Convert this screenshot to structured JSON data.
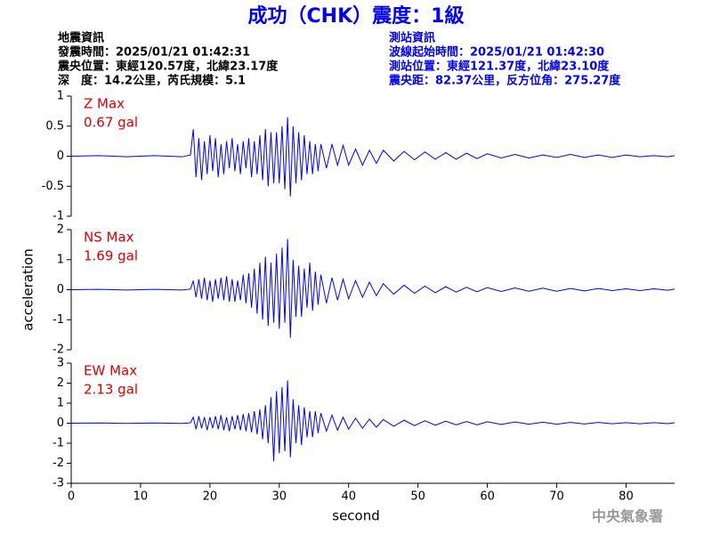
{
  "title": "成功（CHK）震度：1級",
  "event_info": [
    "地震資訊",
    "發震時間：2025/01/21 01:42:31",
    "震央位置：東經120.57度，北緯23.17度",
    "深　度：14.2公里，芮氏規模：5.1"
  ],
  "station_info": [
    "測站資訊",
    "波線起始時間：2025/01/21 01:42:30",
    "測站位置：東經121.37度，北緯23.10度",
    "震央距：82.37公里，反方位角：275.27度"
  ],
  "agency": "中央氣象署",
  "chart_data": [
    {
      "type": "line",
      "annotation": [
        "Z Max",
        "0.67 gal"
      ],
      "color": "#0000ff",
      "x": [
        0,
        4,
        8,
        12,
        16,
        17.2,
        17.6,
        18,
        18.4,
        18.8,
        19.2,
        19.6,
        20,
        20.4,
        20.8,
        21.2,
        21.6,
        22,
        22.4,
        22.8,
        23.2,
        23.6,
        24,
        24.4,
        24.8,
        25.2,
        25.6,
        26,
        26.4,
        26.8,
        27.2,
        27.6,
        28,
        28.4,
        28.8,
        29.2,
        29.6,
        30,
        30.4,
        30.8,
        31.2,
        31.6,
        32,
        32.4,
        32.8,
        33.2,
        33.6,
        34,
        34.4,
        34.8,
        35.2,
        35.6,
        36,
        36.8,
        37.6,
        38.4,
        39.2,
        40,
        41,
        42,
        43,
        44,
        45,
        46.5,
        48,
        49.5,
        51,
        52.5,
        54,
        55.5,
        57,
        58.5,
        60,
        62,
        64,
        66,
        68,
        70,
        72,
        74,
        76,
        78,
        80,
        82,
        84,
        86,
        87
      ],
      "values": [
        0,
        0.01,
        -0.01,
        0.01,
        -0.01,
        0.02,
        0.45,
        -0.35,
        0.3,
        -0.4,
        0.25,
        -0.3,
        0.35,
        -0.25,
        0.3,
        -0.35,
        0.2,
        -0.3,
        0.25,
        -0.2,
        0.3,
        -0.25,
        0.2,
        -0.3,
        0.25,
        -0.2,
        0.3,
        -0.35,
        0.25,
        -0.3,
        0.35,
        -0.4,
        0.45,
        -0.5,
        0.4,
        -0.45,
        0.4,
        -0.45,
        0.5,
        -0.55,
        0.65,
        -0.67,
        0.5,
        -0.45,
        0.4,
        -0.4,
        0.35,
        -0.3,
        0.25,
        -0.3,
        0.2,
        -0.25,
        0.2,
        -0.2,
        0.2,
        -0.15,
        0.18,
        -0.15,
        0.12,
        -0.15,
        0.1,
        -0.12,
        0.1,
        -0.08,
        0.08,
        -0.06,
        0.07,
        -0.05,
        0.06,
        -0.05,
        0.05,
        -0.04,
        0.04,
        -0.03,
        0.03,
        -0.03,
        0.02,
        -0.02,
        0.03,
        -0.02,
        0.02,
        -0.02,
        0.02,
        -0.01,
        0.01,
        -0.01,
        0.01
      ],
      "xlim": [
        0,
        87
      ],
      "ylim": [
        -1,
        1
      ],
      "yticks": [
        -1,
        -0.5,
        0,
        0.5,
        1
      ]
    },
    {
      "type": "line",
      "annotation": [
        "NS Max",
        "1.69 gal"
      ],
      "color": "#0000ff",
      "ylabel": "acceleration",
      "x": [
        0,
        4,
        8,
        12,
        16,
        17.2,
        17.6,
        18,
        18.4,
        18.8,
        19.2,
        19.6,
        20,
        20.4,
        20.8,
        21.2,
        21.6,
        22,
        22.4,
        22.8,
        23.2,
        23.6,
        24,
        24.4,
        24.8,
        25.2,
        25.6,
        26,
        26.4,
        26.8,
        27.2,
        27.6,
        28,
        28.4,
        28.8,
        29.2,
        29.6,
        30,
        30.4,
        30.8,
        31.2,
        31.6,
        32,
        32.4,
        32.8,
        33.2,
        33.6,
        34,
        34.4,
        34.8,
        35.2,
        35.6,
        36,
        36.8,
        37.6,
        38.4,
        39.2,
        40,
        41,
        42,
        43,
        44,
        45,
        46.5,
        48,
        49.5,
        51,
        52.5,
        54,
        55.5,
        57,
        58.5,
        60,
        62,
        64,
        66,
        68,
        70,
        72,
        74,
        76,
        78,
        80,
        82,
        84,
        86,
        87
      ],
      "values": [
        0,
        0.01,
        -0.01,
        0.01,
        -0.01,
        0.02,
        0.3,
        -0.25,
        0.35,
        -0.3,
        0.4,
        -0.35,
        0.3,
        -0.4,
        0.35,
        -0.3,
        0.4,
        -0.35,
        0.45,
        -0.4,
        0.35,
        -0.4,
        0.3,
        -0.35,
        0.5,
        -0.45,
        0.55,
        -0.6,
        0.7,
        -0.8,
        0.9,
        -1.0,
        1.1,
        -1.2,
        0.9,
        -1.1,
        1.2,
        -1.3,
        1.4,
        -1.1,
        1.69,
        -1.6,
        1.0,
        -0.9,
        0.8,
        -0.9,
        0.7,
        -0.6,
        0.9,
        -0.7,
        0.6,
        -0.5,
        0.5,
        -0.45,
        0.4,
        -0.35,
        0.35,
        -0.3,
        0.3,
        -0.25,
        0.25,
        -0.2,
        0.2,
        -0.15,
        0.15,
        -0.12,
        0.12,
        -0.1,
        0.1,
        -0.08,
        0.08,
        -0.07,
        0.07,
        -0.06,
        0.06,
        -0.05,
        0.05,
        -0.05,
        0.04,
        -0.04,
        0.04,
        -0.03,
        0.03,
        -0.03,
        0.03,
        -0.02,
        0.02
      ],
      "xlim": [
        0,
        87
      ],
      "ylim": [
        -2,
        2
      ],
      "yticks": [
        -2,
        -1,
        0,
        1,
        2
      ]
    },
    {
      "type": "line",
      "annotation": [
        "EW Max",
        "2.13 gal"
      ],
      "color": "#0000ff",
      "xlabel": "second",
      "x": [
        0,
        4,
        8,
        12,
        16,
        17.2,
        17.6,
        18,
        18.4,
        18.8,
        19.2,
        19.6,
        20,
        20.4,
        20.8,
        21.2,
        21.6,
        22,
        22.4,
        22.8,
        23.2,
        23.6,
        24,
        24.4,
        24.8,
        25.2,
        25.6,
        26,
        26.4,
        26.8,
        27.2,
        27.6,
        28,
        28.4,
        28.8,
        29.2,
        29.6,
        30,
        30.4,
        30.8,
        31.2,
        31.6,
        32,
        32.4,
        32.8,
        33.2,
        33.6,
        34,
        34.4,
        34.8,
        35.2,
        35.6,
        36,
        36.8,
        37.6,
        38.4,
        39.2,
        40,
        41,
        42,
        43,
        44,
        45,
        46.5,
        48,
        49.5,
        51,
        52.5,
        54,
        55.5,
        57,
        58.5,
        60,
        62,
        64,
        66,
        68,
        70,
        72,
        74,
        76,
        78,
        80,
        82,
        84,
        86,
        87
      ],
      "values": [
        0,
        0.01,
        -0.01,
        0.01,
        -0.01,
        0.02,
        0.3,
        -0.3,
        0.35,
        -0.25,
        0.3,
        -0.35,
        0.3,
        -0.25,
        0.35,
        -0.3,
        0.4,
        -0.35,
        0.3,
        -0.4,
        0.35,
        -0.3,
        0.4,
        -0.35,
        0.45,
        -0.4,
        0.5,
        -0.45,
        0.6,
        -0.55,
        0.7,
        -0.8,
        0.9,
        -1.0,
        1.3,
        -1.9,
        1.6,
        -1.5,
        1.8,
        -1.4,
        2.13,
        -1.7,
        1.2,
        -1.0,
        0.9,
        -1.1,
        0.8,
        -0.7,
        0.6,
        -0.7,
        0.6,
        -0.5,
        0.5,
        -0.4,
        0.4,
        -0.35,
        0.3,
        -0.3,
        0.25,
        -0.25,
        0.2,
        -0.2,
        0.18,
        -0.15,
        0.15,
        -0.12,
        0.12,
        -0.1,
        0.1,
        -0.08,
        0.08,
        -0.08,
        0.07,
        -0.06,
        0.06,
        -0.05,
        0.05,
        -0.05,
        0.04,
        -0.04,
        0.04,
        -0.03,
        0.03,
        -0.03,
        0.03,
        -0.02,
        0.02
      ],
      "xlim": [
        0,
        87
      ],
      "ylim": [
        -3,
        3
      ],
      "yticks": [
        -3,
        -2,
        -1,
        0,
        1,
        2,
        3
      ],
      "xticks": [
        0,
        10,
        20,
        30,
        40,
        50,
        60,
        70,
        80
      ]
    }
  ]
}
